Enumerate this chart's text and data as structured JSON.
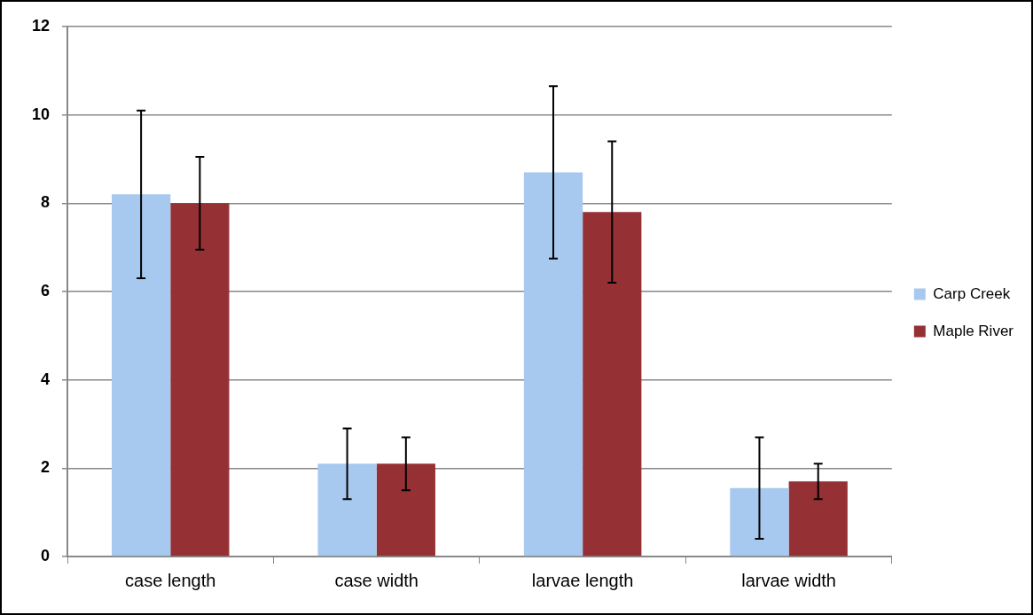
{
  "chart_data": {
    "type": "bar",
    "categories": [
      "case length",
      "case width",
      "larvae length",
      "larvae width"
    ],
    "series": [
      {
        "name": "Carp Creek",
        "color": "#a7c9ef",
        "values": [
          8.2,
          2.1,
          8.7,
          1.55
        ],
        "errors": [
          1.9,
          0.8,
          1.95,
          1.15
        ]
      },
      {
        "name": "Maple River",
        "color": "#953134",
        "values": [
          8.0,
          2.1,
          7.8,
          1.7
        ],
        "errors": [
          1.05,
          0.6,
          1.6,
          0.4
        ]
      }
    ],
    "ylim": [
      0,
      12
    ],
    "yticks": [
      0,
      2,
      4,
      6,
      8,
      10,
      12
    ],
    "grid": "y",
    "legend": "right"
  }
}
